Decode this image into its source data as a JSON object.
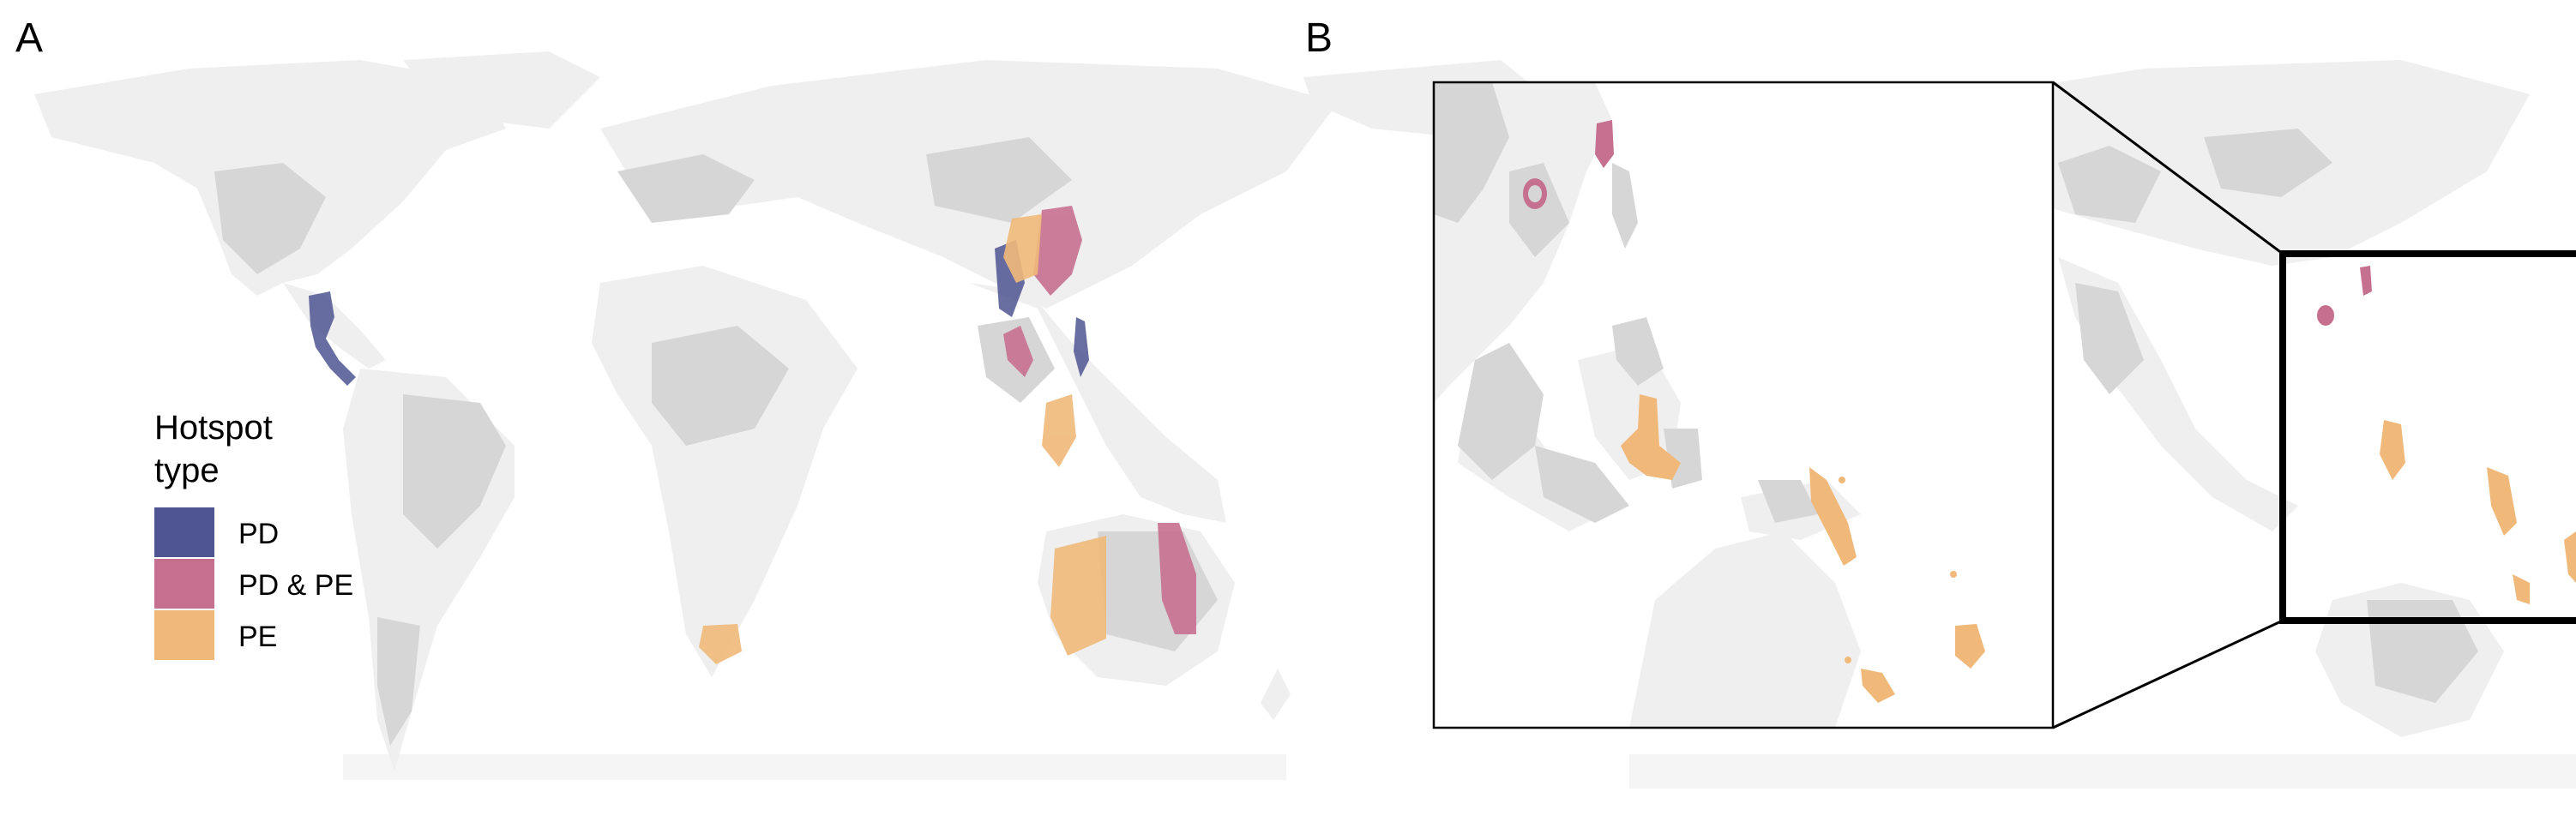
{
  "panels": {
    "a": {
      "label": "A"
    },
    "b": {
      "label": "B"
    }
  },
  "legend": {
    "title_line1": "Hotspot",
    "title_line2": "type",
    "items": [
      {
        "label": "PD",
        "color": "#4e5590"
      },
      {
        "label": "PD & PE",
        "color": "#c6708f"
      },
      {
        "label": "PE",
        "color": "#f0b97a"
      }
    ]
  },
  "colors": {
    "land_light": "#efefef",
    "land_dark": "#d6d6d6",
    "pd": "#4e5590",
    "pd_pe": "#c6708f",
    "pe": "#f0b97a"
  }
}
